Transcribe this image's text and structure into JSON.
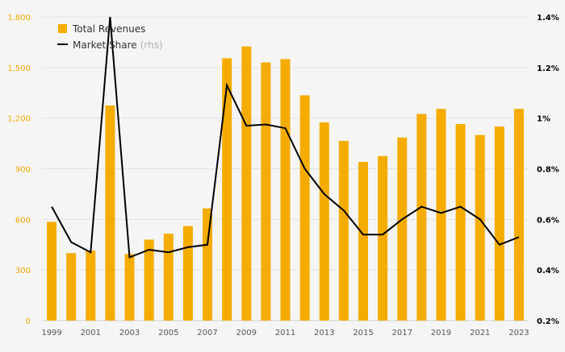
{
  "chart_data": {
    "type": "bar+line",
    "x": [
      "1999",
      "2000",
      "2001",
      "2002",
      "2003",
      "2004",
      "2005",
      "2006",
      "2007",
      "2008",
      "2009",
      "2010",
      "2011",
      "2012",
      "2013",
      "2014",
      "2015",
      "2016",
      "2017",
      "2018",
      "2019",
      "2020",
      "2021",
      "2022",
      "2023"
    ],
    "x_tick_labels": [
      "1999",
      "2001",
      "2003",
      "2005",
      "2007",
      "2009",
      "2011",
      "2013",
      "2015",
      "2017",
      "2019",
      "2021",
      "2023"
    ],
    "series": [
      {
        "name": "Total Revenues",
        "type": "bar",
        "axis": "left",
        "color": "#f5ac00",
        "values": [
          585,
          400,
          415,
          1275,
          395,
          480,
          515,
          560,
          665,
          1555,
          1625,
          1530,
          1550,
          1335,
          1175,
          1065,
          940,
          975,
          1085,
          1225,
          1255,
          1165,
          1100,
          1150,
          1255
        ]
      },
      {
        "name": "Market Share",
        "name_suffix": "(rhs)",
        "type": "line",
        "axis": "right",
        "color": "#000000",
        "values": [
          0.65,
          0.51,
          0.47,
          1.4,
          0.45,
          0.48,
          0.47,
          0.49,
          0.5,
          1.13,
          0.97,
          0.975,
          0.96,
          0.8,
          0.7,
          0.635,
          0.54,
          0.54,
          0.6,
          0.65,
          0.625,
          0.65,
          0.6,
          0.5,
          0.53
        ]
      }
    ],
    "y_left": {
      "ylim": [
        0,
        1800
      ],
      "ticks": [
        "0",
        "300",
        "600",
        "900",
        "1,200",
        "1,500",
        "1,800"
      ],
      "color": "#f5a800"
    },
    "y_right": {
      "ylim": [
        0.2,
        1.4
      ],
      "ticks": [
        "0.2%",
        "0.4%",
        "0.6%",
        "0.8%",
        "1%",
        "1.2%",
        "1.4%"
      ],
      "color": "#000000"
    },
    "grid": true,
    "legend": "top-left"
  }
}
